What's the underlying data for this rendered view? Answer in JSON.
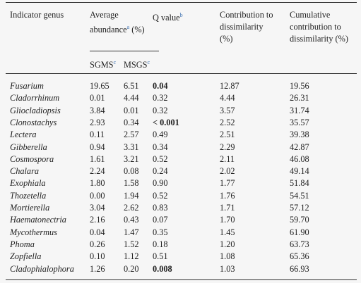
{
  "table": {
    "header": {
      "genus": "Indicator genus",
      "abundance": "Average abundance",
      "abundance_note": "a",
      "abundance_unit": "(%)",
      "sgms": "SGMS",
      "sgms_note": "c",
      "msgs": "MSGS",
      "msgs_note": "c",
      "q": "Q value",
      "q_note": "b",
      "contribution": "Contribution to dissimilarity (%)",
      "cumulative": "Cumulative contribution to dissimilarity (%)"
    },
    "rows": [
      [
        "Fusarium",
        "19.65",
        "6.51",
        "0.04",
        "12.87",
        "19.56"
      ],
      [
        "Cladorrhinum",
        "0.01",
        "4.44",
        "0.32",
        "4.44",
        "26.31"
      ],
      [
        "Gliocladiopsis",
        "3.84",
        "0.01",
        "0.32",
        "3.57",
        "31.74"
      ],
      [
        "Clonostachys",
        "2.93",
        "0.34",
        "< 0.001",
        "2.52",
        "35.57"
      ],
      [
        "Lectera",
        "0.11",
        "2.57",
        "0.49",
        "2.51",
        "39.38"
      ],
      [
        "Gibberella",
        "0.94",
        "3.31",
        "0.34",
        "2.29",
        "42.87"
      ],
      [
        "Cosmospora",
        "1.61",
        "3.21",
        "0.52",
        "2.11",
        "46.08"
      ],
      [
        "Chalara",
        "2.24",
        "0.08",
        "0.24",
        "2.02",
        "49.14"
      ],
      [
        "Exophiala",
        "1.80",
        "1.58",
        "0.90",
        "1.77",
        "51.84"
      ],
      [
        "Thozetella",
        "0.00",
        "1.94",
        "0.52",
        "1.76",
        "54.51"
      ],
      [
        "Mortierella",
        "3.04",
        "2.62",
        "0.83",
        "1.71",
        "57.12"
      ],
      [
        "Haematonectria",
        "2.16",
        "0.43",
        "0.07",
        "1.70",
        "59.70"
      ],
      [
        "Mycothermus",
        "0.04",
        "1.47",
        "0.35",
        "1.45",
        "61.90"
      ],
      [
        "Phoma",
        "0.26",
        "1.52",
        "0.18",
        "1.20",
        "63.73"
      ],
      [
        "Zopfiella",
        "0.10",
        "1.12",
        "0.51",
        "1.08",
        "65.36"
      ],
      [
        "Cladophialophora",
        "1.26",
        "0.20",
        "0.008",
        "1.03",
        "66.93"
      ]
    ]
  }
}
